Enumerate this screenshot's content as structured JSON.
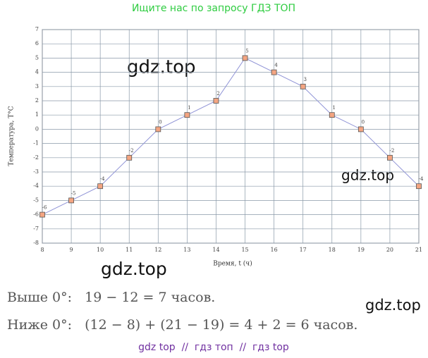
{
  "header": "Ищите нас по запросу ГДЗ ТОП",
  "chart_data": {
    "type": "line",
    "x_label": "Время, t (ч)",
    "y_label": "Температура, T°C",
    "x": [
      8,
      9,
      10,
      11,
      12,
      13,
      14,
      15,
      16,
      17,
      18,
      19,
      20,
      21
    ],
    "values": [
      -6,
      -5,
      -4,
      -2,
      0,
      1,
      2,
      5,
      4,
      3,
      1,
      0,
      -2,
      -4
    ],
    "color": "#8f93d6",
    "marker_color": "#f4a582",
    "xlim": [
      8,
      21
    ],
    "ylim": [
      -8,
      7
    ],
    "xticks": [
      8,
      9,
      10,
      11,
      12,
      13,
      14,
      15,
      16,
      17,
      18,
      19,
      20,
      21
    ],
    "yticks": [
      -8,
      -7,
      -6,
      -5,
      -4,
      -3,
      -2,
      -1,
      0,
      1,
      2,
      3,
      4,
      5,
      6,
      7
    ],
    "grid": true
  },
  "watermarks": [
    "gdz.top",
    "gdz.top",
    "gdz.top",
    "gdz.top"
  ],
  "text_lines": [
    "Выше 0°:   19 − 12 = 7 часов.",
    "Ниже 0°:   (12 − 8) + (21 − 19) = 4 + 2 = 6 часов."
  ],
  "footer": "gdz top  //  гдз топ  //  гдз top"
}
